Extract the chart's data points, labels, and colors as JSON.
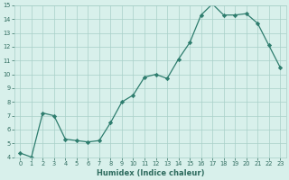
{
  "xlabel": "Humidex (Indice chaleur)",
  "line_color": "#2e7d6e",
  "marker_color": "#2e7d6e",
  "bg_color": "#d8f0eb",
  "grid_color": "#a8cfc8",
  "ylim": [
    4,
    15
  ],
  "xlim": [
    -0.5,
    23.5
  ],
  "yticks": [
    4,
    5,
    6,
    7,
    8,
    9,
    10,
    11,
    12,
    13,
    14,
    15
  ],
  "xticks": [
    0,
    1,
    2,
    3,
    4,
    5,
    6,
    7,
    8,
    9,
    10,
    11,
    12,
    13,
    14,
    15,
    16,
    17,
    18,
    19,
    20,
    21,
    22,
    23
  ],
  "x_data": [
    0,
    1,
    2,
    3,
    4,
    5,
    6,
    7,
    8,
    9,
    10,
    11,
    12,
    13,
    14,
    15,
    16,
    17,
    18,
    19,
    20,
    21,
    22,
    23
  ],
  "y_data": [
    4.3,
    4.0,
    7.2,
    7.0,
    5.3,
    5.2,
    5.1,
    5.2,
    6.5,
    8.0,
    8.5,
    9.8,
    10.0,
    9.7,
    11.1,
    12.3,
    14.3,
    15.1,
    14.3,
    14.3,
    14.4,
    13.7,
    12.1,
    10.5
  ]
}
